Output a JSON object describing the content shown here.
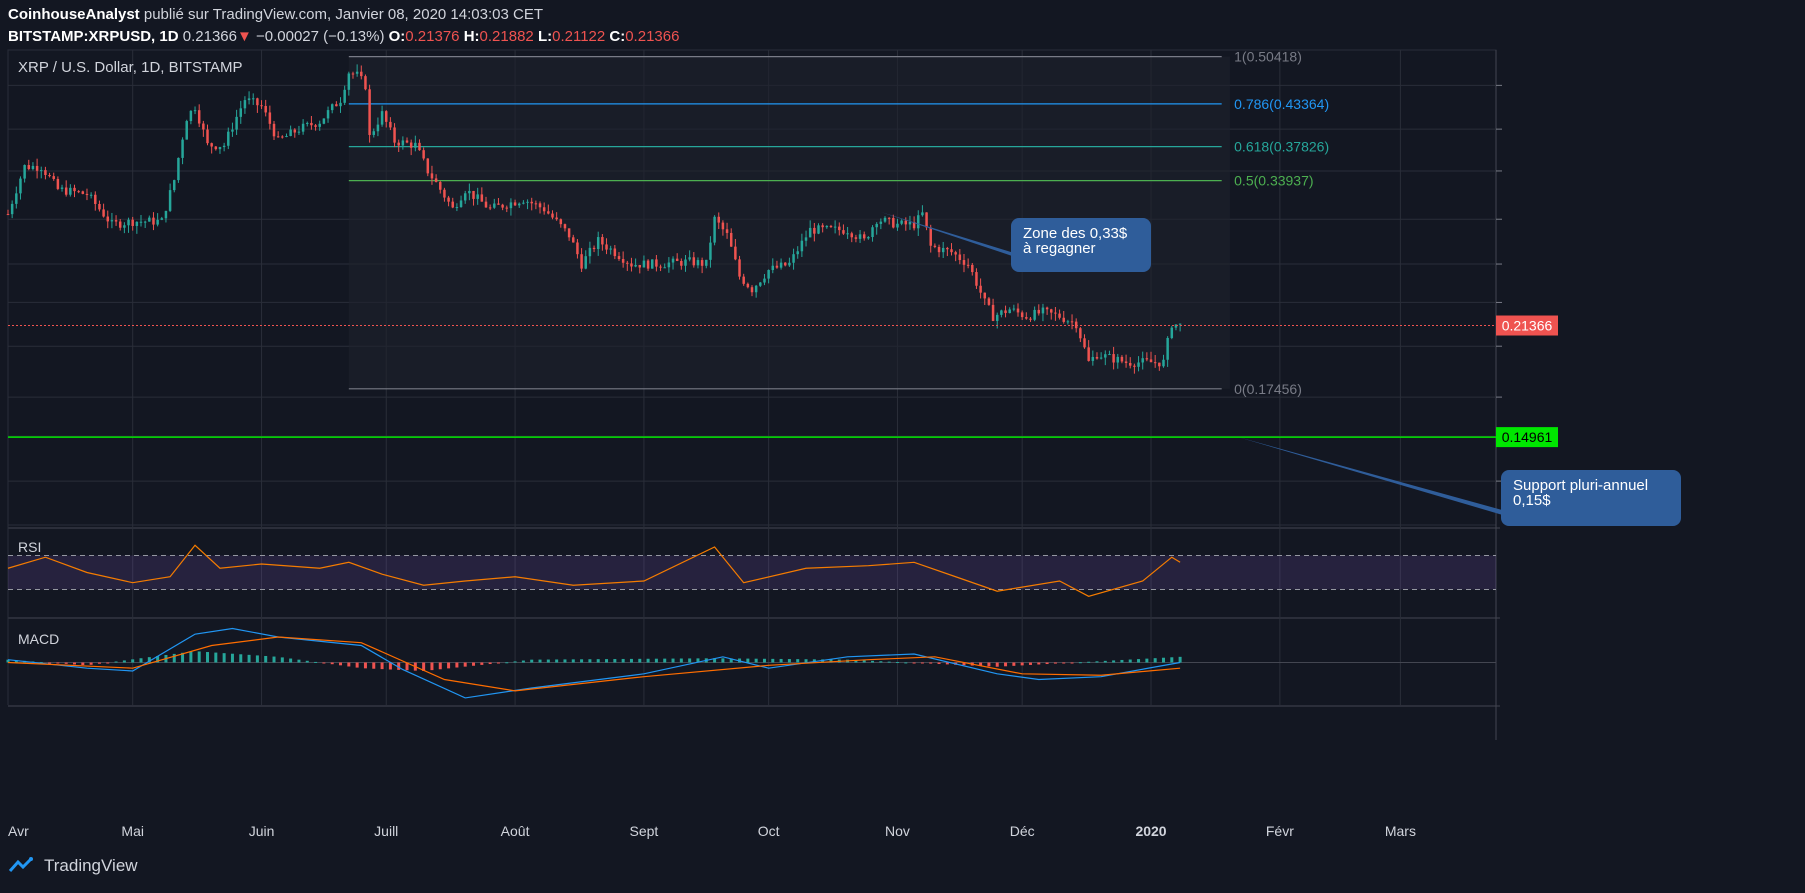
{
  "header": {
    "author": "CoinhouseAnalyst",
    "published": " publié sur TradingView.com, Janvier 08, 2020 14:03:03 CET",
    "symbol": "BITSTAMP:XRPUSD, 1D",
    "last": "0.21366",
    "change_arrow": "▼",
    "change": "−0.00027 (−0.13%)",
    "o_label": "O:",
    "o": "0.21376",
    "h_label": "H:",
    "h": "0.21882",
    "l_label": "L:",
    "l": "0.21122",
    "c_label": "C:",
    "c": "0.21366"
  },
  "footer": {
    "brand": "TradingView"
  },
  "colors": {
    "background": "#131722",
    "grid": "#2a2e39",
    "up": "#26a69a",
    "down": "#ef5350",
    "fib_0786": "#2196f3",
    "fib_0618": "#26a69a",
    "fib_05": "#4caf50",
    "support": "#00e600",
    "rsi_band": "#7e57c2",
    "rsi_line": "#f57c00",
    "macd_line": "#2196f3",
    "signal_line": "#ff6d00",
    "callout": "#2f5d9a"
  },
  "chart_data": {
    "type": "candlestick",
    "title": "XRP / U.S. Dollar, 1D, BITSTAMP",
    "x_tick_labels": [
      "Avr",
      "Mai",
      "Juin",
      "Juill",
      "Août",
      "Sept",
      "Oct",
      "Nov",
      "Déc",
      "2020",
      "Févr",
      "Mars"
    ],
    "x_tick_dates": [
      "2019-04-01",
      "2019-05-01",
      "2019-06-01",
      "2019-07-01",
      "2019-08-01",
      "2019-09-01",
      "2019-10-01",
      "2019-11-01",
      "2019-12-01",
      "2020-01-01",
      "2020-02-01",
      "2020-03-01"
    ],
    "x_range": [
      "2019-04-01",
      "2020-03-24"
    ],
    "y_range": [
      0.113,
      0.515
    ],
    "scale": "log",
    "grid": true,
    "price_close_path": [
      [
        "2019-04-01",
        0.305
      ],
      [
        "2019-04-05",
        0.355
      ],
      [
        "2019-04-09",
        0.355
      ],
      [
        "2019-04-13",
        0.33
      ],
      [
        "2019-04-20",
        0.325
      ],
      [
        "2019-04-26",
        0.295
      ],
      [
        "2019-05-01",
        0.298
      ],
      [
        "2019-05-08",
        0.298
      ],
      [
        "2019-05-11",
        0.34
      ],
      [
        "2019-05-14",
        0.415
      ],
      [
        "2019-05-16",
        0.43
      ],
      [
        "2019-05-19",
        0.38
      ],
      [
        "2019-05-23",
        0.38
      ],
      [
        "2019-05-28",
        0.44
      ],
      [
        "2019-06-01",
        0.43
      ],
      [
        "2019-06-05",
        0.385
      ],
      [
        "2019-06-10",
        0.4
      ],
      [
        "2019-06-15",
        0.41
      ],
      [
        "2019-06-20",
        0.44
      ],
      [
        "2019-06-22",
        0.48
      ],
      [
        "2019-06-24",
        0.475
      ],
      [
        "2019-06-26",
        0.46
      ],
      [
        "2019-06-27",
        0.39
      ],
      [
        "2019-06-30",
        0.42
      ],
      [
        "2019-07-03",
        0.385
      ],
      [
        "2019-07-08",
        0.38
      ],
      [
        "2019-07-11",
        0.35
      ],
      [
        "2019-07-14",
        0.33
      ],
      [
        "2019-07-17",
        0.31
      ],
      [
        "2019-07-20",
        0.33
      ],
      [
        "2019-07-26",
        0.31
      ],
      [
        "2019-08-03",
        0.32
      ],
      [
        "2019-08-08",
        0.31
      ],
      [
        "2019-08-14",
        0.285
      ],
      [
        "2019-08-17",
        0.26
      ],
      [
        "2019-08-21",
        0.28
      ],
      [
        "2019-08-29",
        0.26
      ],
      [
        "2019-09-04",
        0.26
      ],
      [
        "2019-09-12",
        0.262
      ],
      [
        "2019-09-16",
        0.26
      ],
      [
        "2019-09-18",
        0.3
      ],
      [
        "2019-09-21",
        0.285
      ],
      [
        "2019-09-24",
        0.25
      ],
      [
        "2019-09-27",
        0.24
      ],
      [
        "2019-10-01",
        0.255
      ],
      [
        "2019-10-06",
        0.26
      ],
      [
        "2019-10-11",
        0.29
      ],
      [
        "2019-10-15",
        0.29
      ],
      [
        "2019-10-20",
        0.29
      ],
      [
        "2019-10-24",
        0.28
      ],
      [
        "2019-10-27",
        0.3
      ],
      [
        "2019-11-01",
        0.295
      ],
      [
        "2019-11-05",
        0.295
      ],
      [
        "2019-11-07",
        0.305
      ],
      [
        "2019-11-09",
        0.275
      ],
      [
        "2019-11-14",
        0.27
      ],
      [
        "2019-11-18",
        0.26
      ],
      [
        "2019-11-22",
        0.23
      ],
      [
        "2019-11-24",
        0.22
      ],
      [
        "2019-11-28",
        0.225
      ],
      [
        "2019-12-02",
        0.22
      ],
      [
        "2019-12-06",
        0.223
      ],
      [
        "2019-12-10",
        0.22
      ],
      [
        "2019-12-14",
        0.215
      ],
      [
        "2019-12-17",
        0.19
      ],
      [
        "2019-12-19",
        0.195
      ],
      [
        "2019-12-26",
        0.19
      ],
      [
        "2019-12-30",
        0.19
      ],
      [
        "2020-01-04",
        0.19
      ],
      [
        "2020-01-06",
        0.215
      ],
      [
        "2020-01-08",
        0.2137
      ]
    ],
    "last_price": 0.21366,
    "last_price_label": "0.21366",
    "support_level": 0.14961,
    "support_label": "0.14961",
    "fibonacci": {
      "start_date": "2019-06-22",
      "end_date": "2020-01-08",
      "levels": [
        {
          "ratio": 1,
          "price": 0.50418,
          "label": "1(0.50418)",
          "color": "#787b86"
        },
        {
          "ratio": 0.786,
          "price": 0.43364,
          "label": "0.786(0.43364)",
          "color": "#2196f3"
        },
        {
          "ratio": 0.618,
          "price": 0.37826,
          "label": "0.618(0.37826)",
          "color": "#26a69a"
        },
        {
          "ratio": 0.5,
          "price": 0.33937,
          "label": "0.5(0.33937)",
          "color": "#4caf50"
        },
        {
          "ratio": 0,
          "price": 0.17456,
          "label": "0(0.17456)",
          "color": "#787b86"
        }
      ]
    },
    "callouts": [
      {
        "lines": [
          "Zone des 0,33$",
          "à regagner"
        ],
        "target_date": "2019-10-28",
        "target_price": 0.307
      },
      {
        "lines": [
          "Support pluri-annuel",
          "0,15$"
        ],
        "target_date": "2020-01-22",
        "target_price": 0.14961
      }
    ],
    "rsi": {
      "label": "RSI",
      "band": [
        30,
        70
      ],
      "path": [
        [
          "2019-04-01",
          55
        ],
        [
          "2019-04-10",
          68
        ],
        [
          "2019-04-20",
          50
        ],
        [
          "2019-05-01",
          38
        ],
        [
          "2019-05-10",
          45
        ],
        [
          "2019-05-16",
          82
        ],
        [
          "2019-05-22",
          55
        ],
        [
          "2019-06-01",
          60
        ],
        [
          "2019-06-15",
          55
        ],
        [
          "2019-06-22",
          62
        ],
        [
          "2019-06-30",
          48
        ],
        [
          "2019-07-10",
          35
        ],
        [
          "2019-07-20",
          40
        ],
        [
          "2019-08-01",
          45
        ],
        [
          "2019-08-15",
          35
        ],
        [
          "2019-09-01",
          40
        ],
        [
          "2019-09-18",
          80
        ],
        [
          "2019-09-25",
          38
        ],
        [
          "2019-10-10",
          55
        ],
        [
          "2019-10-25",
          58
        ],
        [
          "2019-11-05",
          62
        ],
        [
          "2019-11-15",
          45
        ],
        [
          "2019-11-25",
          28
        ],
        [
          "2019-12-10",
          40
        ],
        [
          "2019-12-17",
          22
        ],
        [
          "2019-12-30",
          40
        ],
        [
          "2020-01-06",
          68
        ],
        [
          "2020-01-08",
          62
        ]
      ]
    },
    "macd": {
      "label": "MACD",
      "macd": [
        [
          "2019-04-01",
          0.002
        ],
        [
          "2019-04-20",
          -0.004
        ],
        [
          "2019-05-01",
          -0.006
        ],
        [
          "2019-05-16",
          0.02
        ],
        [
          "2019-05-25",
          0.024
        ],
        [
          "2019-06-05",
          0.018
        ],
        [
          "2019-06-25",
          0.012
        ],
        [
          "2019-07-05",
          -0.005
        ],
        [
          "2019-07-20",
          -0.025
        ],
        [
          "2019-08-05",
          -0.018
        ],
        [
          "2019-09-01",
          -0.008
        ],
        [
          "2019-09-20",
          0.004
        ],
        [
          "2019-10-01",
          -0.004
        ],
        [
          "2019-10-20",
          0.004
        ],
        [
          "2019-11-05",
          0.006
        ],
        [
          "2019-11-25",
          -0.008
        ],
        [
          "2019-12-05",
          -0.012
        ],
        [
          "2019-12-20",
          -0.01
        ],
        [
          "2020-01-08",
          0.0
        ]
      ],
      "signal": [
        [
          "2019-04-01",
          0.0
        ],
        [
          "2019-05-01",
          -0.004
        ],
        [
          "2019-05-20",
          0.012
        ],
        [
          "2019-06-05",
          0.018
        ],
        [
          "2019-06-25",
          0.014
        ],
        [
          "2019-07-15",
          -0.012
        ],
        [
          "2019-08-01",
          -0.02
        ],
        [
          "2019-09-01",
          -0.01
        ],
        [
          "2019-10-01",
          -0.002
        ],
        [
          "2019-10-25",
          0.002
        ],
        [
          "2019-11-10",
          0.004
        ],
        [
          "2019-12-01",
          -0.008
        ],
        [
          "2019-12-20",
          -0.009
        ],
        [
          "2020-01-08",
          -0.004
        ]
      ],
      "histogram": [
        [
          "2019-04-01",
          0.002
        ],
        [
          "2019-04-20",
          -0.002
        ],
        [
          "2019-05-16",
          0.008
        ],
        [
          "2019-06-05",
          0.004
        ],
        [
          "2019-06-25",
          -0.004
        ],
        [
          "2019-07-10",
          -0.006
        ],
        [
          "2019-08-05",
          0.002
        ],
        [
          "2019-09-18",
          0.003
        ],
        [
          "2019-10-20",
          0.002
        ],
        [
          "2019-11-25",
          -0.003
        ],
        [
          "2019-12-20",
          0.001
        ],
        [
          "2020-01-08",
          0.004
        ]
      ],
      "range": [
        -0.03,
        0.03
      ]
    }
  }
}
